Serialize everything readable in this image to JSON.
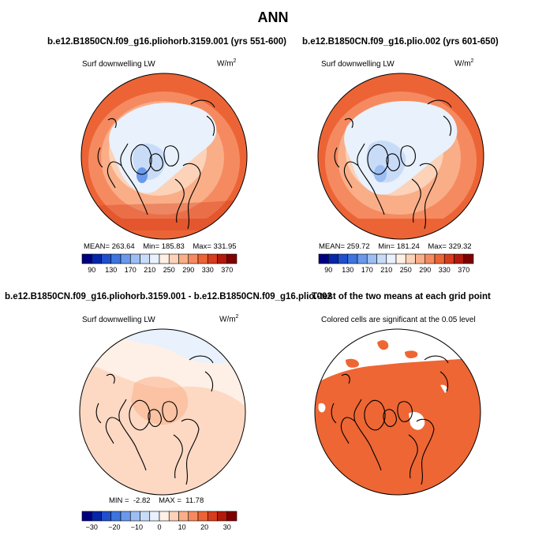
{
  "page": {
    "title": "ANN",
    "case1_title": "b.e12.B1850CN.f09_g16.pliohorb.3159.001 (yrs 551-600)",
    "case2_title": "b.e12.B1850CN.f09_g16.plio.002 (yrs 601-650)",
    "diff_title": "b.e12.B1850CN.f09_g16.pliohorb.3159.001 - b.e12.B1850CN.f09_g16.plio.002",
    "ttest_title": "T-test of the two means at each grid point"
  },
  "chart_data": [
    {
      "type": "polar-map",
      "variable": "Surf downwelling LW",
      "units": "W/m",
      "units_sup": "2",
      "stats": {
        "mean_label": "MEAN=",
        "mean": "263.64",
        "min_label": "Min=",
        "min": "185.83",
        "max_label": "Max=",
        "max": "331.95"
      },
      "colorbar": {
        "labels": [
          "90",
          "130",
          "170",
          "210",
          "250",
          "290",
          "330",
          "370"
        ],
        "colors": [
          "#00007f",
          "#0526a8",
          "#1f4fcc",
          "#3d74dd",
          "#6a98eb",
          "#9cbef3",
          "#c8dcf8",
          "#e8f1fc",
          "#fef0e6",
          "#fcd2b8",
          "#f9ae88",
          "#f58a60",
          "#ec6436",
          "#d73c1c",
          "#b21a0c",
          "#7f0000"
        ]
      }
    },
    {
      "type": "polar-map",
      "variable": "Surf downwelling LW",
      "units": "W/m",
      "units_sup": "2",
      "stats": {
        "mean_label": "MEAN=",
        "mean": "259.72",
        "min_label": "Min=",
        "min": "181.24",
        "max_label": "Max=",
        "max": "329.32"
      },
      "colorbar": {
        "labels": [
          "90",
          "130",
          "170",
          "210",
          "250",
          "290",
          "330",
          "370"
        ],
        "colors": [
          "#00007f",
          "#0526a8",
          "#1f4fcc",
          "#3d74dd",
          "#6a98eb",
          "#9cbef3",
          "#c8dcf8",
          "#e8f1fc",
          "#fef0e6",
          "#fcd2b8",
          "#f9ae88",
          "#f58a60",
          "#ec6436",
          "#d73c1c",
          "#b21a0c",
          "#7f0000"
        ]
      }
    },
    {
      "type": "polar-map",
      "variable": "Surf downwelling LW",
      "units": "W/m",
      "units_sup": "2",
      "stats": {
        "min_label": "MIN =",
        "min": "-2.82",
        "max_label": "MAX =",
        "max": "11.78"
      },
      "colorbar": {
        "labels": [
          "−30",
          "−20",
          "−10",
          "0",
          "10",
          "20",
          "30"
        ],
        "colors": [
          "#00007f",
          "#0526a8",
          "#1f4fcc",
          "#3d74dd",
          "#6a98eb",
          "#9cbef3",
          "#c8dcf8",
          "#e8f1fc",
          "#fef0e6",
          "#fcd2b8",
          "#f9ae88",
          "#f58a60",
          "#ec6436",
          "#d73c1c",
          "#b21a0c",
          "#7f0000"
        ]
      }
    },
    {
      "type": "polar-map",
      "note": "Colored cells are significant at the 0.05 level",
      "sig_color": "#ee6633"
    }
  ]
}
